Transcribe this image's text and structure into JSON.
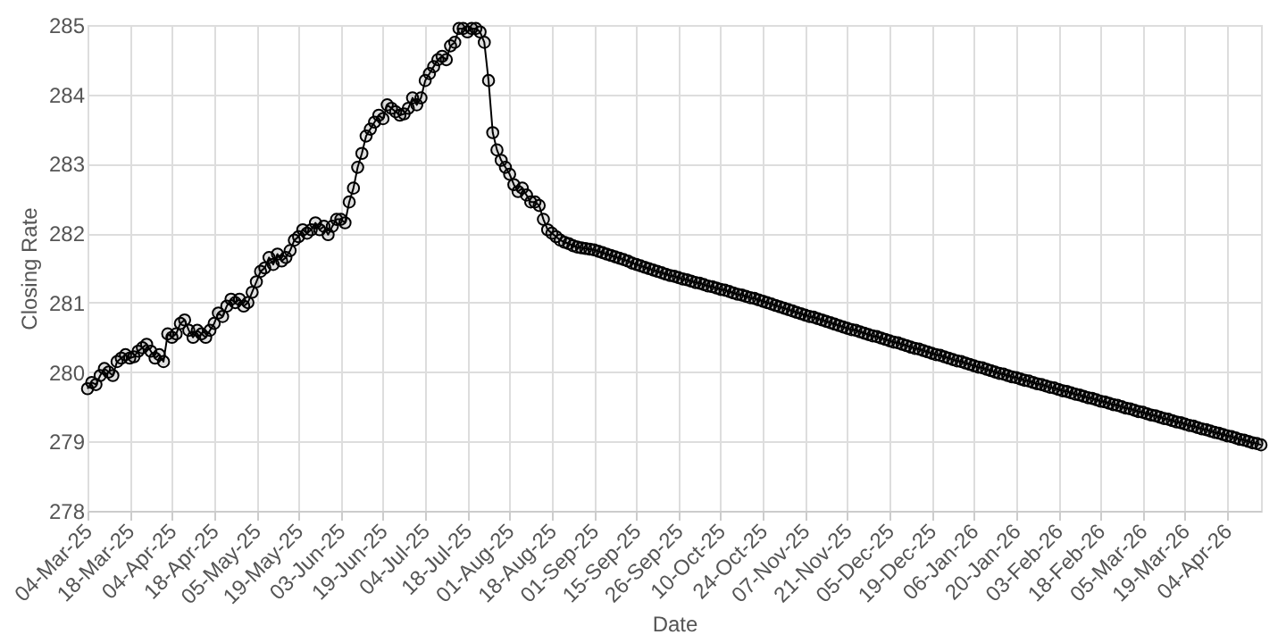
{
  "chart_data": {
    "type": "line",
    "xlabel": "Date",
    "ylabel": "Closing Rate",
    "categories": [
      "04-Mar-25",
      null,
      null,
      null,
      null,
      null,
      null,
      null,
      null,
      null,
      "18-Mar-25",
      null,
      null,
      null,
      null,
      null,
      null,
      null,
      null,
      null,
      "04-Apr-25",
      null,
      null,
      null,
      null,
      null,
      null,
      null,
      null,
      null,
      "18-Apr-25",
      null,
      null,
      null,
      null,
      null,
      null,
      null,
      null,
      null,
      "05-May-25",
      null,
      null,
      null,
      null,
      null,
      null,
      null,
      null,
      null,
      "19-May-25",
      null,
      null,
      null,
      null,
      null,
      null,
      null,
      null,
      null,
      "03-Jun-25",
      null,
      null,
      null,
      null,
      null,
      null,
      null,
      null,
      null,
      "19-Jun-25",
      null,
      null,
      null,
      null,
      null,
      null,
      null,
      null,
      null,
      "04-Jul-25",
      null,
      null,
      null,
      null,
      null,
      null,
      null,
      null,
      null,
      "18-Jul-25",
      null,
      null,
      null,
      null,
      null,
      null,
      null,
      null,
      null,
      "01-Aug-25",
      null,
      null,
      null,
      null,
      null,
      null,
      null,
      null,
      null,
      "18-Aug-25",
      null,
      null,
      null,
      null,
      null,
      null,
      null,
      null,
      null,
      "01-Sep-25",
      null,
      null,
      null,
      null,
      null,
      null,
      null,
      null,
      null,
      "15-Sep-25",
      null,
      null,
      null,
      null,
      null,
      null,
      null,
      null,
      null,
      "26-Sep-25",
      null,
      null,
      null,
      null,
      null,
      null,
      null,
      null,
      null,
      "10-Oct-25",
      null,
      null,
      null,
      null,
      null,
      null,
      null,
      null,
      null,
      "24-Oct-25",
      null,
      null,
      null,
      null,
      null,
      null,
      null,
      null,
      null,
      "07-Nov-25",
      null,
      null,
      null,
      null,
      null,
      null,
      null,
      null,
      null,
      "21-Nov-25",
      null,
      null,
      null,
      null,
      null,
      null,
      null,
      null,
      null,
      "05-Dec-25",
      null,
      null,
      null,
      null,
      null,
      null,
      null,
      null,
      null,
      "19-Dec-25",
      null,
      null,
      null,
      null,
      null,
      null,
      null,
      null,
      null,
      "06-Jan-26",
      null,
      null,
      null,
      null,
      null,
      null,
      null,
      null,
      null,
      "20-Jan-26",
      null,
      null,
      null,
      null,
      null,
      null,
      null,
      null,
      null,
      "03-Feb-26",
      null,
      null,
      null,
      null,
      null,
      null,
      null,
      null,
      null,
      "18-Feb-26",
      null,
      null,
      null,
      null,
      null,
      null,
      null,
      null,
      null,
      "05-Mar-26",
      null,
      null,
      null,
      null,
      null,
      null,
      null,
      null,
      null,
      "19-Mar-26",
      null,
      null,
      null,
      null,
      null,
      null,
      null,
      null,
      null,
      "04-Apr-26",
      null,
      null,
      null,
      null,
      null,
      null,
      null,
      null
    ],
    "series": [
      {
        "color": "#000000",
        "values": [
          279.76,
          279.85,
          279.82,
          279.95,
          280.05,
          280.0,
          279.95,
          280.15,
          280.2,
          280.25,
          280.2,
          280.22,
          280.3,
          280.35,
          280.4,
          280.3,
          280.2,
          280.25,
          280.15,
          280.55,
          280.5,
          280.55,
          280.7,
          280.75,
          280.6,
          280.5,
          280.6,
          280.55,
          280.5,
          280.6,
          280.7,
          280.85,
          280.8,
          280.95,
          281.05,
          281.0,
          281.05,
          280.95,
          281.0,
          281.15,
          281.3,
          281.45,
          281.5,
          281.65,
          281.55,
          281.7,
          281.6,
          281.65,
          281.75,
          281.9,
          281.95,
          282.05,
          282.0,
          282.05,
          282.15,
          282.05,
          282.1,
          281.98,
          282.1,
          282.2,
          282.2,
          282.15,
          282.45,
          282.65,
          282.95,
          283.15,
          283.4,
          283.5,
          283.6,
          283.7,
          283.65,
          283.85,
          283.8,
          283.75,
          283.7,
          283.72,
          283.8,
          283.95,
          283.85,
          283.95,
          284.2,
          284.3,
          284.4,
          284.5,
          284.55,
          284.5,
          284.7,
          284.75,
          284.95,
          284.95,
          284.9,
          284.95,
          284.95,
          284.9,
          284.75,
          284.2,
          283.45,
          283.2,
          283.05,
          282.95,
          282.85,
          282.7,
          282.6,
          282.65,
          282.55,
          282.45,
          282.45,
          282.4,
          282.2,
          282.05,
          282.0,
          281.95,
          281.9,
          281.87,
          281.85,
          281.82,
          281.8,
          281.79,
          281.78,
          281.77,
          281.76,
          281.74,
          281.72,
          281.7,
          281.68,
          281.66,
          281.64,
          281.62,
          281.6,
          281.57,
          281.55,
          281.53,
          281.51,
          281.49,
          281.47,
          281.45,
          281.43,
          281.41,
          281.39,
          281.38,
          281.36,
          281.34,
          281.33,
          281.31,
          281.29,
          281.28,
          281.26,
          281.24,
          281.23,
          281.21,
          281.19,
          281.18,
          281.16,
          281.14,
          281.12,
          281.11,
          281.09,
          281.07,
          281.06,
          281.04,
          281.02,
          281.0,
          280.98,
          280.96,
          280.94,
          280.92,
          280.9,
          280.88,
          280.86,
          280.84,
          280.82,
          280.8,
          280.79,
          280.77,
          280.75,
          280.73,
          280.71,
          280.69,
          280.67,
          280.65,
          280.63,
          280.61,
          280.6,
          280.58,
          280.56,
          280.54,
          280.52,
          280.51,
          280.49,
          280.47,
          280.45,
          280.43,
          280.42,
          280.4,
          280.38,
          280.36,
          280.34,
          280.33,
          280.31,
          280.29,
          280.27,
          280.25,
          280.24,
          280.22,
          280.2,
          280.18,
          280.16,
          280.15,
          280.13,
          280.11,
          280.09,
          280.07,
          280.06,
          280.04,
          280.02,
          280.0,
          279.98,
          279.97,
          279.95,
          279.93,
          279.92,
          279.9,
          279.88,
          279.87,
          279.85,
          279.83,
          279.82,
          279.8,
          279.78,
          279.77,
          279.75,
          279.73,
          279.72,
          279.7,
          279.68,
          279.67,
          279.65,
          279.63,
          279.62,
          279.6,
          279.58,
          279.57,
          279.55,
          279.53,
          279.52,
          279.5,
          279.48,
          279.47,
          279.45,
          279.43,
          279.42,
          279.4,
          279.38,
          279.37,
          279.35,
          279.33,
          279.32,
          279.3,
          279.28,
          279.27,
          279.25,
          279.23,
          279.22,
          279.2,
          279.18,
          279.17,
          279.15,
          279.13,
          279.12,
          279.1,
          279.08,
          279.07,
          279.05,
          279.03,
          279.02,
          279.0,
          278.98,
          278.97,
          278.95
        ]
      }
    ],
    "ylim": [
      278,
      285
    ],
    "yticks": [
      278,
      279,
      280,
      281,
      282,
      283,
      284,
      285
    ],
    "grid": true,
    "marker": "circle",
    "line_style": "solid"
  }
}
